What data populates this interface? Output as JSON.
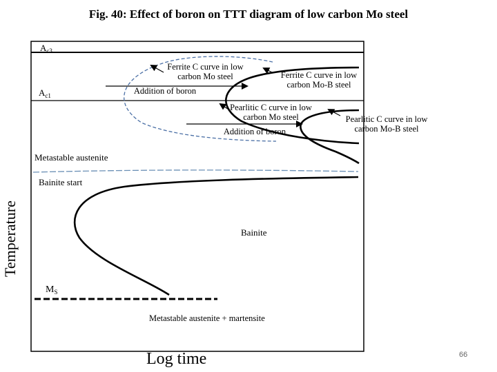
{
  "title": "Fig. 40: Effect of boron on TTT diagram of low carbon Mo steel",
  "labels": {
    "ac3_main": "A",
    "ac3_sub": "c3",
    "ac1_main": "A",
    "ac1_sub": "c1",
    "ferrite_mo_line1": "Ferrite C curve in low",
    "ferrite_mo_line2": "carbon Mo steel",
    "addition_of_boron_top": "Addition of boron",
    "ferrite_mob_line1": "Ferrite C curve in low",
    "ferrite_mob_line2": "carbon Mo-B steel",
    "pearlitic_mo_line1": "Pearlitic C curve in low",
    "pearlitic_mo_line2": "carbon Mo steel",
    "addition_of_boron_mid": "Addition of boron",
    "pearlitic_mob_line1": "Pearlitic C curve in low",
    "pearlitic_mob_line2": "carbon Mo-B steel",
    "metastable_austenite": "Metastable austenite",
    "bainite_start": "Bainite start",
    "bainite": "Bainite",
    "ms_main": "M",
    "ms_sub": "S",
    "metastable_plus_martensite": "Metastable austenite + martensite"
  },
  "axes": {
    "ylabel": "Temperature",
    "xlabel": "Log time"
  },
  "page_number": "66",
  "colors": {
    "curve": "#000000",
    "dashed_mo_curve": "#4a6fa5",
    "dashed_reference_line": "#6a8fb5",
    "frame": "#000000"
  }
}
